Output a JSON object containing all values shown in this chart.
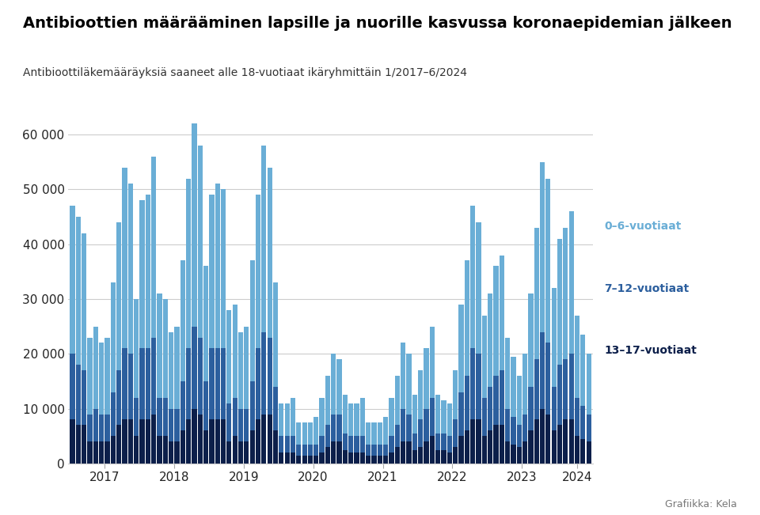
{
  "title": "Antibioottien määrääminen lapsille ja nuorille kasvussa koronaepidemian jälkeen",
  "subtitle": "Antibioottiläkemääräyksiä saaneet alle 18-vuotiaat ikäryhmittäin 1/2017–6/2024",
  "footer": "Grafiikka: Kela",
  "colors": {
    "age_0_6": "#6aaed6",
    "age_7_12": "#2c5f9e",
    "age_13_17": "#0c1f4a"
  },
  "legend_labels": [
    "0–6-vuotiaat",
    "7–12-vuotiaat",
    "13–17-vuotiaat"
  ],
  "legend_colors": [
    "#6aaed6",
    "#2c5f9e",
    "#0c1f4a"
  ],
  "ylim": [
    0,
    62000
  ],
  "yticks": [
    0,
    10000,
    20000,
    30000,
    40000,
    50000,
    60000
  ],
  "age_0_6": [
    27000,
    27000,
    25000,
    14000,
    15000,
    13000,
    14000,
    20000,
    27000,
    33000,
    31000,
    18000,
    27000,
    28000,
    33000,
    19000,
    18000,
    14000,
    15000,
    22000,
    31000,
    37000,
    35000,
    21000,
    28000,
    30000,
    29000,
    17000,
    17000,
    14000,
    15000,
    22000,
    28000,
    34000,
    31000,
    19000,
    6000,
    6000,
    7000,
    4000,
    4000,
    4000,
    5000,
    7000,
    9000,
    11000,
    10000,
    7000,
    6000,
    6000,
    7000,
    4000,
    4000,
    4000,
    5000,
    7000,
    9000,
    12000,
    11000,
    7000,
    9000,
    11000,
    13000,
    7000,
    6000,
    6000,
    9000,
    16000,
    21000,
    26000,
    24000,
    15000,
    17000,
    20000,
    21000,
    13000,
    11000,
    9000,
    11000,
    17000,
    24000,
    31000,
    30000,
    18000,
    23000,
    24000,
    26000,
    15000,
    13000,
    11000
  ],
  "age_7_12": [
    12000,
    11000,
    10000,
    5000,
    6000,
    5000,
    5000,
    8000,
    10000,
    13000,
    12000,
    7000,
    13000,
    13000,
    14000,
    7000,
    7000,
    6000,
    6000,
    9000,
    13000,
    15000,
    14000,
    9000,
    13000,
    13000,
    13000,
    7000,
    7000,
    6000,
    6000,
    9000,
    13000,
    15000,
    14000,
    8000,
    3000,
    3000,
    3000,
    2000,
    2000,
    2000,
    2000,
    3000,
    4000,
    5000,
    5000,
    3000,
    3000,
    3000,
    3000,
    2000,
    2000,
    2000,
    2000,
    3000,
    4000,
    6000,
    5000,
    3000,
    5000,
    6000,
    7000,
    3000,
    3000,
    3000,
    5000,
    8000,
    10000,
    13000,
    12000,
    7000,
    8000,
    9000,
    10000,
    6000,
    5000,
    4000,
    5000,
    8000,
    11000,
    14000,
    13000,
    8000,
    11000,
    11000,
    12000,
    7000,
    6000,
    5000
  ],
  "age_13_17": [
    8000,
    7000,
    7000,
    4000,
    4000,
    4000,
    4000,
    5000,
    7000,
    8000,
    8000,
    5000,
    8000,
    8000,
    9000,
    5000,
    5000,
    4000,
    4000,
    6000,
    8000,
    10000,
    9000,
    6000,
    8000,
    8000,
    8000,
    4000,
    5000,
    4000,
    4000,
    6000,
    8000,
    9000,
    9000,
    6000,
    2000,
    2000,
    2000,
    1500,
    1500,
    1500,
    1500,
    2000,
    3000,
    4000,
    4000,
    2500,
    2000,
    2000,
    2000,
    1500,
    1500,
    1500,
    1500,
    2000,
    3000,
    4000,
    4000,
    2500,
    3000,
    4000,
    5000,
    2500,
    2500,
    2000,
    3000,
    5000,
    6000,
    8000,
    8000,
    5000,
    6000,
    7000,
    7000,
    4000,
    3500,
    3000,
    4000,
    6000,
    8000,
    10000,
    9000,
    6000,
    7000,
    8000,
    8000,
    5000,
    4500,
    4000
  ]
}
